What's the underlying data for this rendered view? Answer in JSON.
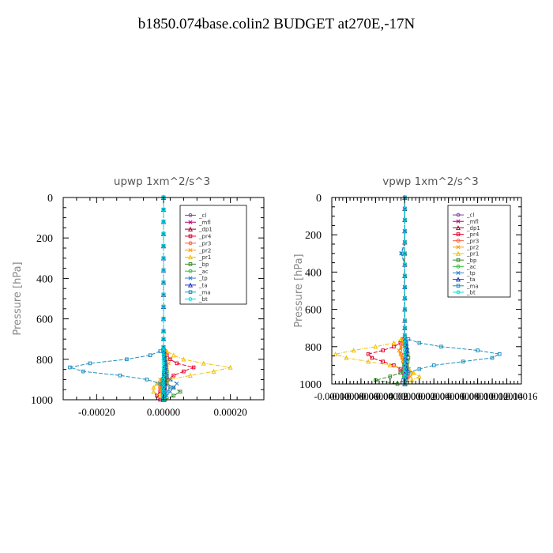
{
  "page_title": "b1850.074base.colin2  BUDGET at270E,-17N",
  "chart_data": [
    {
      "type": "line",
      "title": "upwp   1xm^2/s^3",
      "ylabel": "Pressure [hPa]",
      "xlabel": "",
      "xlim": [
        -0.0003,
        0.0003
      ],
      "ylim": [
        1000,
        0
      ],
      "y_reversed": true,
      "xticks": [
        -0.0002,
        0.0,
        0.0002
      ],
      "xtick_labels": [
        "-0.00020",
        "0.00000",
        "0.00020"
      ],
      "yticks": [
        0,
        200,
        400,
        600,
        800,
        1000
      ],
      "ytick_labels": [
        "0",
        "200",
        "400",
        "600",
        "800",
        "1000"
      ],
      "legend_position": "top-right",
      "y": [
        0,
        60,
        120,
        180,
        240,
        300,
        360,
        420,
        480,
        540,
        600,
        660,
        700,
        740,
        760,
        780,
        800,
        820,
        840,
        860,
        880,
        900,
        920,
        940,
        960,
        980,
        1000
      ],
      "series": [
        {
          "name": "_cl",
          "color": "#7b3fa8",
          "values": [
            0,
            0,
            0,
            0,
            0,
            0,
            0,
            0,
            0,
            0,
            0,
            0,
            0,
            0,
            2e-06,
            4e-06,
            6e-06,
            8e-06,
            5e-06,
            3e-06,
            2e-06,
            4e-06,
            6e-06,
            4e-06,
            3e-06,
            2e-06,
            1e-06
          ]
        },
        {
          "name": "_mfl",
          "color": "#b8006b",
          "values": [
            0,
            0,
            0,
            0,
            0,
            0,
            0,
            0,
            0,
            0,
            0,
            0,
            0,
            0,
            1e-06,
            2e-06,
            3e-06,
            4e-06,
            3e-06,
            2e-06,
            1e-06,
            -3e-06,
            -5e-06,
            -3e-06,
            -2e-06,
            -1e-06,
            0
          ]
        },
        {
          "name": "_dp1",
          "color": "#a0002a",
          "values": [
            0,
            0,
            0,
            0,
            0,
            0,
            0,
            0,
            0,
            0,
            0,
            0,
            0,
            0,
            2e-06,
            3e-06,
            4e-06,
            5e-06,
            4e-06,
            3e-06,
            2e-06,
            4e-06,
            5e-06,
            3e-06,
            2e-06,
            1e-06,
            0
          ]
        },
        {
          "name": "_pr4",
          "color": "#e8002c",
          "values": [
            0,
            0,
            0,
            0,
            0,
            0,
            0,
            0,
            0,
            0,
            0,
            0,
            0,
            0,
            5e-06,
            1e-05,
            2e-05,
            4e-05,
            9e-05,
            6e-05,
            3e-05,
            1e-05,
            -5e-06,
            -1e-05,
            -1e-05,
            -2e-05,
            -1e-05
          ]
        },
        {
          "name": "_pr3",
          "color": "#ff5a3c",
          "values": [
            0,
            0,
            0,
            0,
            0,
            0,
            0,
            0,
            0,
            0,
            0,
            0,
            0,
            0,
            2e-06,
            4e-06,
            6e-06,
            8e-06,
            6e-06,
            4e-06,
            2e-06,
            -5e-06,
            -1e-05,
            -1e-05,
            -5e-06,
            -2e-06,
            0
          ]
        },
        {
          "name": "_pr2",
          "color": "#ff9a00",
          "values": [
            0,
            0,
            0,
            0,
            0,
            0,
            0,
            0,
            0,
            0,
            0,
            0,
            0,
            0,
            3e-06,
            6e-06,
            1e-05,
            1.5e-05,
            1e-05,
            6e-06,
            3e-06,
            -1e-05,
            -2e-05,
            -1e-05,
            -5e-06,
            -2e-06,
            0
          ]
        },
        {
          "name": "_pr1",
          "color": "#f0c000",
          "values": [
            0,
            0,
            0,
            0,
            0,
            0,
            0,
            0,
            0,
            0,
            0,
            0,
            0,
            0,
            1e-05,
            3e-05,
            6e-05,
            0.00012,
            0.0002,
            0.00015,
            8e-05,
            2e-05,
            -2e-05,
            -3e-05,
            -3e-05,
            -1e-05,
            0
          ]
        },
        {
          "name": "_bp",
          "color": "#3a8a2a",
          "values": [
            0,
            0,
            0,
            0,
            0,
            0,
            0,
            0,
            0,
            0,
            0,
            0,
            0,
            0,
            1e-06,
            2e-06,
            3e-06,
            5e-06,
            8e-06,
            1e-05,
            1e-05,
            5e-06,
            1e-05,
            3e-05,
            5e-05,
            3e-05,
            5e-06
          ]
        },
        {
          "name": "_ac",
          "color": "#30c030",
          "values": [
            0,
            0,
            0,
            0,
            0,
            0,
            0,
            0,
            0,
            0,
            0,
            0,
            0,
            0,
            1e-06,
            2e-06,
            3e-06,
            4e-06,
            3e-06,
            2e-06,
            1e-06,
            -3e-06,
            -5e-06,
            -3e-06,
            -2e-06,
            -1e-06,
            0
          ]
        },
        {
          "name": "_tp",
          "color": "#2a7fd6",
          "values": [
            0,
            0,
            0,
            0,
            0,
            0,
            0,
            0,
            0,
            0,
            0,
            0,
            0,
            0,
            2e-06,
            3e-06,
            4e-06,
            5e-06,
            6e-06,
            8e-06,
            1e-05,
            2e-05,
            4e-05,
            3e-05,
            2e-05,
            1e-05,
            0
          ]
        },
        {
          "name": "_ta",
          "color": "#2030c0",
          "values": [
            0,
            0,
            0,
            0,
            0,
            0,
            0,
            0,
            0,
            0,
            0,
            0,
            0,
            0,
            1e-06,
            2e-06,
            3e-06,
            4e-06,
            3e-06,
            2e-06,
            1e-06,
            2e-06,
            3e-06,
            2e-06,
            1e-06,
            1e-06,
            0
          ]
        },
        {
          "name": "_ma",
          "color": "#2090c0",
          "values": [
            0,
            0,
            0,
            0,
            0,
            0,
            0,
            0,
            0,
            0,
            0,
            0,
            0,
            0,
            -1e-05,
            -4e-05,
            -0.00011,
            -0.00022,
            -0.00028,
            -0.00024,
            -0.00013,
            -5e-05,
            -1e-05,
            2e-05,
            1e-05,
            5e-06,
            0
          ]
        },
        {
          "name": "_bt",
          "color": "#00e0e0",
          "values": [
            0,
            0,
            0,
            0,
            0,
            0,
            0,
            0,
            0,
            0,
            0,
            0,
            0,
            0,
            0,
            0,
            0,
            0,
            0,
            0,
            0,
            0,
            0,
            0,
            0,
            0,
            0
          ]
        }
      ]
    },
    {
      "type": "line",
      "title": "vpwp   1xm^2/s^3",
      "ylabel": "Pressure [hPa]",
      "xlabel": "",
      "xlim": [
        -0.0001,
        0.00016
      ],
      "ylim": [
        1000,
        0
      ],
      "y_reversed": true,
      "xticks": [
        -0.0001,
        -8e-05,
        -6e-05,
        -4e-05,
        -2e-05,
        0.0,
        2e-05,
        4e-05,
        6e-05,
        8e-05,
        0.0001,
        0.00012,
        0.00014,
        0.00016
      ],
      "xtick_labels": [
        "-0.00010",
        "-0.00008",
        "-0.00006",
        "-0.00004",
        "-0.00002",
        "0.00000",
        "0.00002",
        "0.00004",
        "0.00006",
        "0.00008",
        "0.00010",
        "0.00012",
        "0.00014",
        "0.00016"
      ],
      "yticks": [
        0,
        200,
        400,
        600,
        800,
        1000
      ],
      "ytick_labels": [
        "0",
        "200",
        "400",
        "600",
        "800",
        "1000"
      ],
      "legend_position": "top-right",
      "y": [
        0,
        60,
        120,
        180,
        240,
        300,
        360,
        420,
        480,
        540,
        600,
        660,
        700,
        740,
        760,
        780,
        800,
        820,
        840,
        860,
        880,
        900,
        920,
        940,
        960,
        980,
        1000
      ],
      "series": [
        {
          "name": "_cl",
          "color": "#7b3fa8",
          "values": [
            0,
            0,
            0,
            0,
            0,
            0,
            0,
            0,
            0,
            0,
            0,
            0,
            0,
            0,
            1e-06,
            2e-06,
            2e-06,
            3e-06,
            2e-06,
            1e-06,
            1e-06,
            2e-06,
            3e-06,
            2e-06,
            1e-06,
            1e-06,
            0
          ]
        },
        {
          "name": "_mfl",
          "color": "#b8006b",
          "values": [
            0,
            0,
            0,
            0,
            0,
            0,
            0,
            0,
            0,
            0,
            0,
            0,
            0,
            0,
            0,
            1e-06,
            1e-06,
            2e-06,
            1e-06,
            1e-06,
            0,
            -1e-06,
            -2e-06,
            -1e-06,
            -1e-06,
            0,
            0
          ]
        },
        {
          "name": "_dp1",
          "color": "#a0002a",
          "values": [
            0,
            0,
            0,
            0,
            0,
            0,
            0,
            0,
            0,
            0,
            0,
            0,
            0,
            0,
            1e-06,
            1e-06,
            2e-06,
            2e-06,
            2e-06,
            1e-06,
            1e-06,
            1e-06,
            2e-06,
            1e-06,
            1e-06,
            0,
            0
          ]
        },
        {
          "name": "_pr4",
          "color": "#e8002c",
          "values": [
            0,
            0,
            0,
            0,
            0,
            0,
            0,
            0,
            0,
            0,
            0,
            0,
            0,
            0,
            -2e-06,
            -6e-06,
            -1.5e-05,
            -3e-05,
            -5e-05,
            -4.5e-05,
            -3e-05,
            -1.5e-05,
            -6e-06,
            2e-06,
            4e-06,
            2e-06,
            0
          ]
        },
        {
          "name": "_pr3",
          "color": "#ff5a3c",
          "values": [
            0,
            0,
            0,
            0,
            0,
            0,
            0,
            0,
            0,
            0,
            0,
            0,
            0,
            0,
            -1e-06,
            -2e-06,
            -4e-06,
            -6e-06,
            -5e-06,
            -3e-06,
            -2e-06,
            2e-06,
            4e-06,
            3e-06,
            2e-06,
            1e-06,
            0
          ]
        },
        {
          "name": "_pr2",
          "color": "#ff9a00",
          "values": [
            0,
            0,
            0,
            0,
            0,
            0,
            0,
            0,
            0,
            0,
            0,
            0,
            0,
            0,
            -1e-06,
            -3e-06,
            -5e-06,
            -8e-06,
            -6e-06,
            -4e-06,
            -2e-06,
            3e-06,
            6e-06,
            1e-05,
            8e-06,
            4e-06,
            0
          ]
        },
        {
          "name": "_pr1",
          "color": "#f0c000",
          "values": [
            0,
            0,
            0,
            0,
            0,
            0,
            0,
            0,
            0,
            0,
            0,
            0,
            0,
            0,
            -5e-06,
            -1.5e-05,
            -4e-05,
            -7e-05,
            -9.5e-05,
            -8e-05,
            -5e-05,
            -2e-05,
            6e-06,
            1.2e-05,
            2e-05,
            1e-05,
            2e-06
          ]
        },
        {
          "name": "_bp",
          "color": "#3a8a2a",
          "values": [
            0,
            0,
            0,
            0,
            0,
            0,
            0,
            0,
            0,
            0,
            0,
            0,
            0,
            0,
            0,
            1e-06,
            2e-06,
            3e-06,
            4e-06,
            5e-06,
            4e-06,
            3e-06,
            1e-06,
            -6e-06,
            -2e-05,
            -4e-05,
            -1e-05
          ]
        },
        {
          "name": "_ac",
          "color": "#30c030",
          "values": [
            0,
            0,
            0,
            0,
            0,
            0,
            0,
            0,
            0,
            0,
            0,
            0,
            0,
            0,
            0,
            1e-06,
            1e-06,
            2e-06,
            1e-06,
            1e-06,
            0,
            -1e-06,
            -2e-06,
            -1e-06,
            -1e-06,
            0,
            0
          ]
        },
        {
          "name": "_tp",
          "color": "#2a7fd6",
          "values": [
            0,
            0,
            0,
            0,
            0,
            -5e-06,
            0,
            0,
            0,
            0,
            0,
            0,
            0,
            0,
            1e-06,
            2e-06,
            3e-06,
            4e-06,
            3e-06,
            2e-06,
            1e-06,
            2e-06,
            4e-06,
            3e-06,
            2e-06,
            1e-06,
            0
          ]
        },
        {
          "name": "_ta",
          "color": "#2030c0",
          "values": [
            0,
            0,
            0,
            0,
            0,
            0,
            0,
            0,
            0,
            0,
            0,
            0,
            0,
            0,
            1e-06,
            1e-06,
            2e-06,
            2e-06,
            2e-06,
            1e-06,
            1e-06,
            1e-06,
            2e-06,
            1e-06,
            1e-06,
            0,
            0
          ]
        },
        {
          "name": "_ma",
          "color": "#2090c0",
          "values": [
            0,
            0,
            0,
            0,
            0,
            -4e-06,
            0,
            0,
            0,
            0,
            0,
            0,
            0,
            0,
            5e-06,
            2e-05,
            5e-05,
            0.0001,
            0.00013,
            0.00012,
            8e-05,
            4e-05,
            2e-05,
            5e-06,
            0,
            -2e-06,
            0
          ]
        },
        {
          "name": "_bt",
          "color": "#00e0e0",
          "values": [
            0,
            0,
            0,
            0,
            0,
            0,
            0,
            0,
            0,
            0,
            0,
            0,
            0,
            0,
            0,
            0,
            0,
            0,
            0,
            0,
            0,
            0,
            0,
            0,
            0,
            0,
            0
          ]
        }
      ]
    }
  ]
}
